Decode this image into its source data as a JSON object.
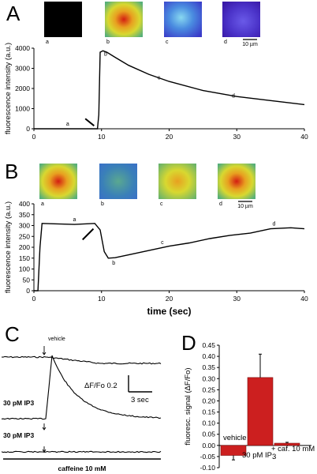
{
  "colors": {
    "trace": "#000000",
    "bar_fill": "#cc1f1f",
    "bar_edge": "#7a0f0f"
  },
  "chart_data": [
    {
      "panel": "A",
      "type": "line",
      "ylabel": "fluorescence intensity (a.u.)",
      "xlabel": "",
      "xlim": [
        0,
        40
      ],
      "ylim": [
        0,
        4000
      ],
      "xticks": [
        0,
        10,
        20,
        30,
        40
      ],
      "yticks": [
        0,
        1000,
        2000,
        3000,
        4000
      ],
      "x": [
        0,
        5,
        9.4,
        9.6,
        9.8,
        10.2,
        10.8,
        12,
        14,
        17,
        20,
        25,
        30,
        35,
        40
      ],
      "y": [
        0,
        0,
        0,
        700,
        3800,
        3870,
        3800,
        3550,
        3150,
        2700,
        2350,
        1900,
        1600,
        1400,
        1200
      ],
      "point_labels": [
        {
          "label": "a",
          "x": 5,
          "y": 150
        },
        {
          "label": "b",
          "x": 10.6,
          "y": 3620
        },
        {
          "label": "c",
          "x": 18.5,
          "y": 2450
        },
        {
          "label": "d",
          "x": 29.5,
          "y": 1550
        }
      ],
      "images": [
        {
          "label": "a",
          "style": "black"
        },
        {
          "label": "b",
          "style": "hot"
        },
        {
          "label": "c",
          "style": "blue"
        },
        {
          "label": "d",
          "style": "purple"
        }
      ],
      "scale_bar": "10 µm"
    },
    {
      "panel": "B",
      "type": "line",
      "ylabel": "fluorescence intensity (a.u.)",
      "xlabel": "time (sec)",
      "xlim": [
        0,
        40
      ],
      "ylim": [
        0,
        400
      ],
      "xticks": [
        0,
        10,
        20,
        30,
        40
      ],
      "yticks": [
        0,
        50,
        100,
        150,
        200,
        250,
        300,
        350,
        400
      ],
      "x": [
        0,
        0.6,
        0.9,
        1.2,
        3,
        6,
        9,
        9.8,
        10.4,
        11,
        12,
        14,
        17,
        20,
        23,
        26,
        29,
        32,
        35,
        38,
        40
      ],
      "y": [
        0,
        0,
        200,
        310,
        308,
        305,
        310,
        280,
        180,
        150,
        152,
        165,
        185,
        205,
        220,
        240,
        255,
        265,
        285,
        290,
        285
      ],
      "point_labels": [
        {
          "label": "a",
          "x": 6,
          "y": 320
        },
        {
          "label": "b",
          "x": 11.8,
          "y": 120
        },
        {
          "label": "c",
          "x": 19,
          "y": 215
        },
        {
          "label": "d",
          "x": 35.5,
          "y": 300
        }
      ],
      "images": [
        {
          "label": "a",
          "style": "hot"
        },
        {
          "label": "b",
          "style": "cool"
        },
        {
          "label": "c",
          "style": "warm"
        },
        {
          "label": "d",
          "style": "hot"
        }
      ],
      "scale_bar": "10 µm"
    },
    {
      "panel": "C",
      "type": "line",
      "traces": [
        {
          "label": "vehicle",
          "label_position": "above"
        },
        {
          "label": "30 pM IP3",
          "label_position": "left"
        },
        {
          "label": "30 pM IP3",
          "label_position": "left"
        }
      ],
      "scale_bar_y": "ΔF/Fo 0.2",
      "scale_bar_x": "3 sec",
      "xlabel": "caffeine 10 mM"
    },
    {
      "panel": "D",
      "type": "bar",
      "ylabel": "fluoresc. signal (ΔF/Fo)",
      "ylim": [
        -0.1,
        0.45
      ],
      "yticks": [
        "0.45",
        "0.40",
        "0.35",
        "0.30",
        "0.25",
        "0.20",
        "0.15",
        "0.10",
        "0.05",
        "0.00",
        "-0.05",
        "-0.10"
      ],
      "categories": [
        "vehicle",
        "30 pM IP",
        "+ caf. 10 mM"
      ],
      "category_subscript": [
        "",
        "3",
        ""
      ],
      "values": [
        -0.045,
        0.305,
        0.01
      ],
      "errors": [
        0.02,
        0.105,
        0.004
      ]
    }
  ]
}
